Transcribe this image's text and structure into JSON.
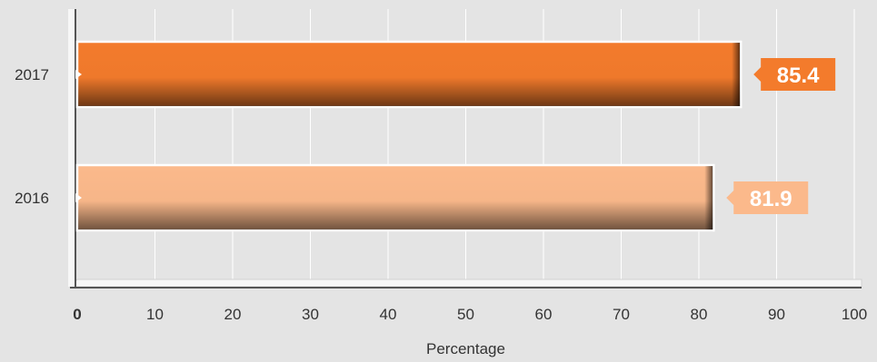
{
  "chart_data": {
    "type": "bar",
    "orientation": "horizontal",
    "categories": [
      "2017",
      "2016"
    ],
    "values": [
      85.4,
      81.9
    ],
    "colors": [
      "#f37b2c",
      "#fbb98b"
    ],
    "xlabel": "Percentage",
    "xlim": [
      0,
      100
    ],
    "xticks": [
      "0",
      "10",
      "20",
      "30",
      "40",
      "50",
      "60",
      "70",
      "80",
      "90",
      "100"
    ],
    "grid": true
  }
}
